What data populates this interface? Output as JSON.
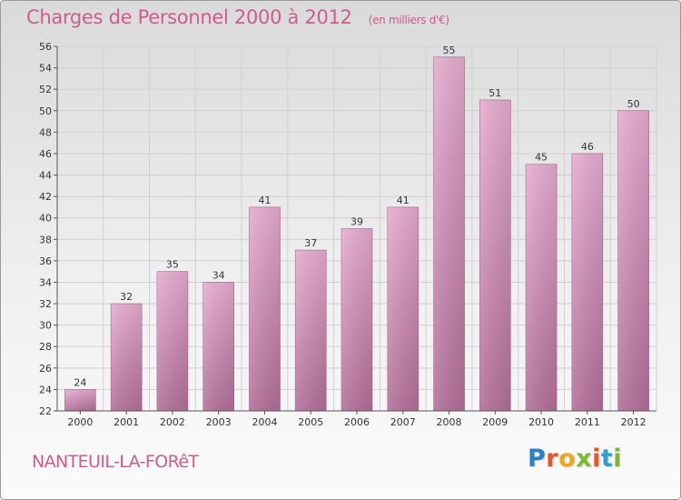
{
  "title": "Charges de Personnel 2000 à 2012",
  "subtitle": "(en milliers d'€)",
  "city": "NANTEUIL-LA-FORêT",
  "logo": {
    "letters": [
      "P",
      "r",
      "o",
      "x",
      "i",
      "t",
      "i"
    ],
    "colors": [
      "#2e7fc6",
      "#e8542b",
      "#f2a71b",
      "#7ab929",
      "#e8542b",
      "#2e9fd6",
      "#7ab929"
    ]
  },
  "colors": {
    "title": "#d05c8a",
    "bar_top": "#e6acd0",
    "bar_bottom": "#b36e98",
    "grid": "#d0d0d0"
  },
  "chart_data": {
    "type": "bar",
    "title": "Charges de Personnel 2000 à 2012",
    "subtitle": "(en milliers d'€)",
    "categories": [
      "2000",
      "2001",
      "2002",
      "2003",
      "2004",
      "2005",
      "2006",
      "2007",
      "2008",
      "2009",
      "2010",
      "2011",
      "2012"
    ],
    "values": [
      24,
      32,
      35,
      34,
      41,
      37,
      39,
      41,
      55,
      51,
      45,
      46,
      50
    ],
    "ylim": [
      22,
      56
    ],
    "yticks": [
      22,
      24,
      26,
      28,
      30,
      32,
      34,
      36,
      38,
      40,
      42,
      44,
      46,
      48,
      50,
      52,
      54,
      56
    ],
    "grid": true,
    "data_labels": true
  }
}
